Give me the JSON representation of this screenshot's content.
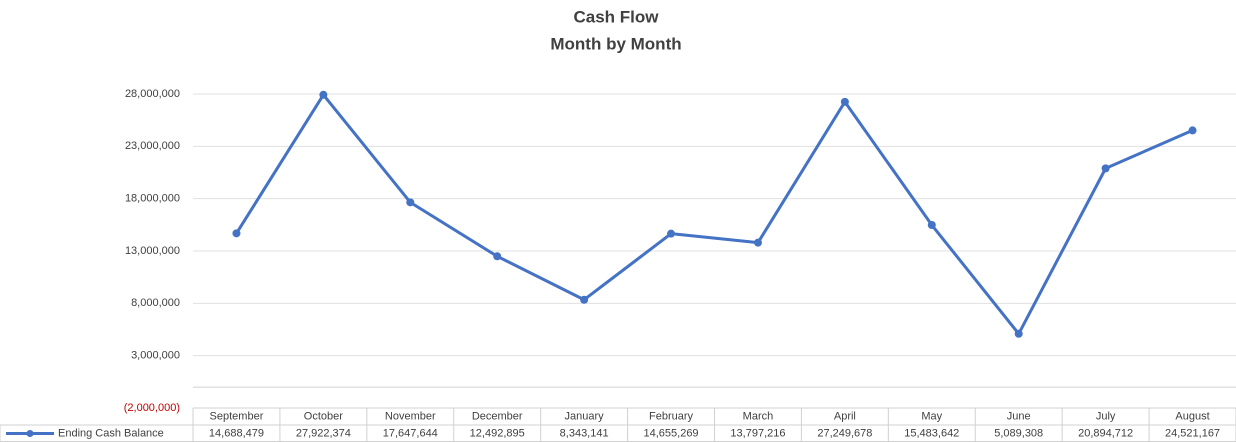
{
  "chart_data": {
    "type": "line",
    "title": "Cash Flow",
    "subtitle": "Month by Month",
    "categories": [
      "September",
      "October",
      "November",
      "December",
      "January",
      "February",
      "March",
      "April",
      "May",
      "June",
      "July",
      "August"
    ],
    "series": [
      {
        "name": "Ending Cash Balance",
        "color": "#4472c4",
        "values": [
          14688479,
          27922374,
          17647644,
          12492895,
          8343141,
          14655269,
          13797216,
          27249678,
          15483642,
          5089308,
          20894712,
          24521167
        ],
        "value_labels": [
          "14,688,479",
          "27,922,374",
          "17,647,644",
          "12,492,895",
          "8,343,141",
          "14,655,269",
          "13,797,216",
          "27,249,678",
          "15,483,642",
          "5,089,308",
          "20,894,712",
          "24,521,167"
        ]
      }
    ],
    "ylim": [
      -2000000,
      28000000
    ],
    "yticks": [
      {
        "value": 28000000,
        "label": "28,000,000"
      },
      {
        "value": 23000000,
        "label": "23,000,000"
      },
      {
        "value": 18000000,
        "label": "18,000,000"
      },
      {
        "value": 13000000,
        "label": "13,000,000"
      },
      {
        "value": 8000000,
        "label": "8,000,000"
      },
      {
        "value": 3000000,
        "label": "3,000,000"
      },
      {
        "value": -2000000,
        "label": "(2,000,000)"
      }
    ],
    "negative_tick_color": "#c00000",
    "grid": true,
    "data_table": true
  }
}
